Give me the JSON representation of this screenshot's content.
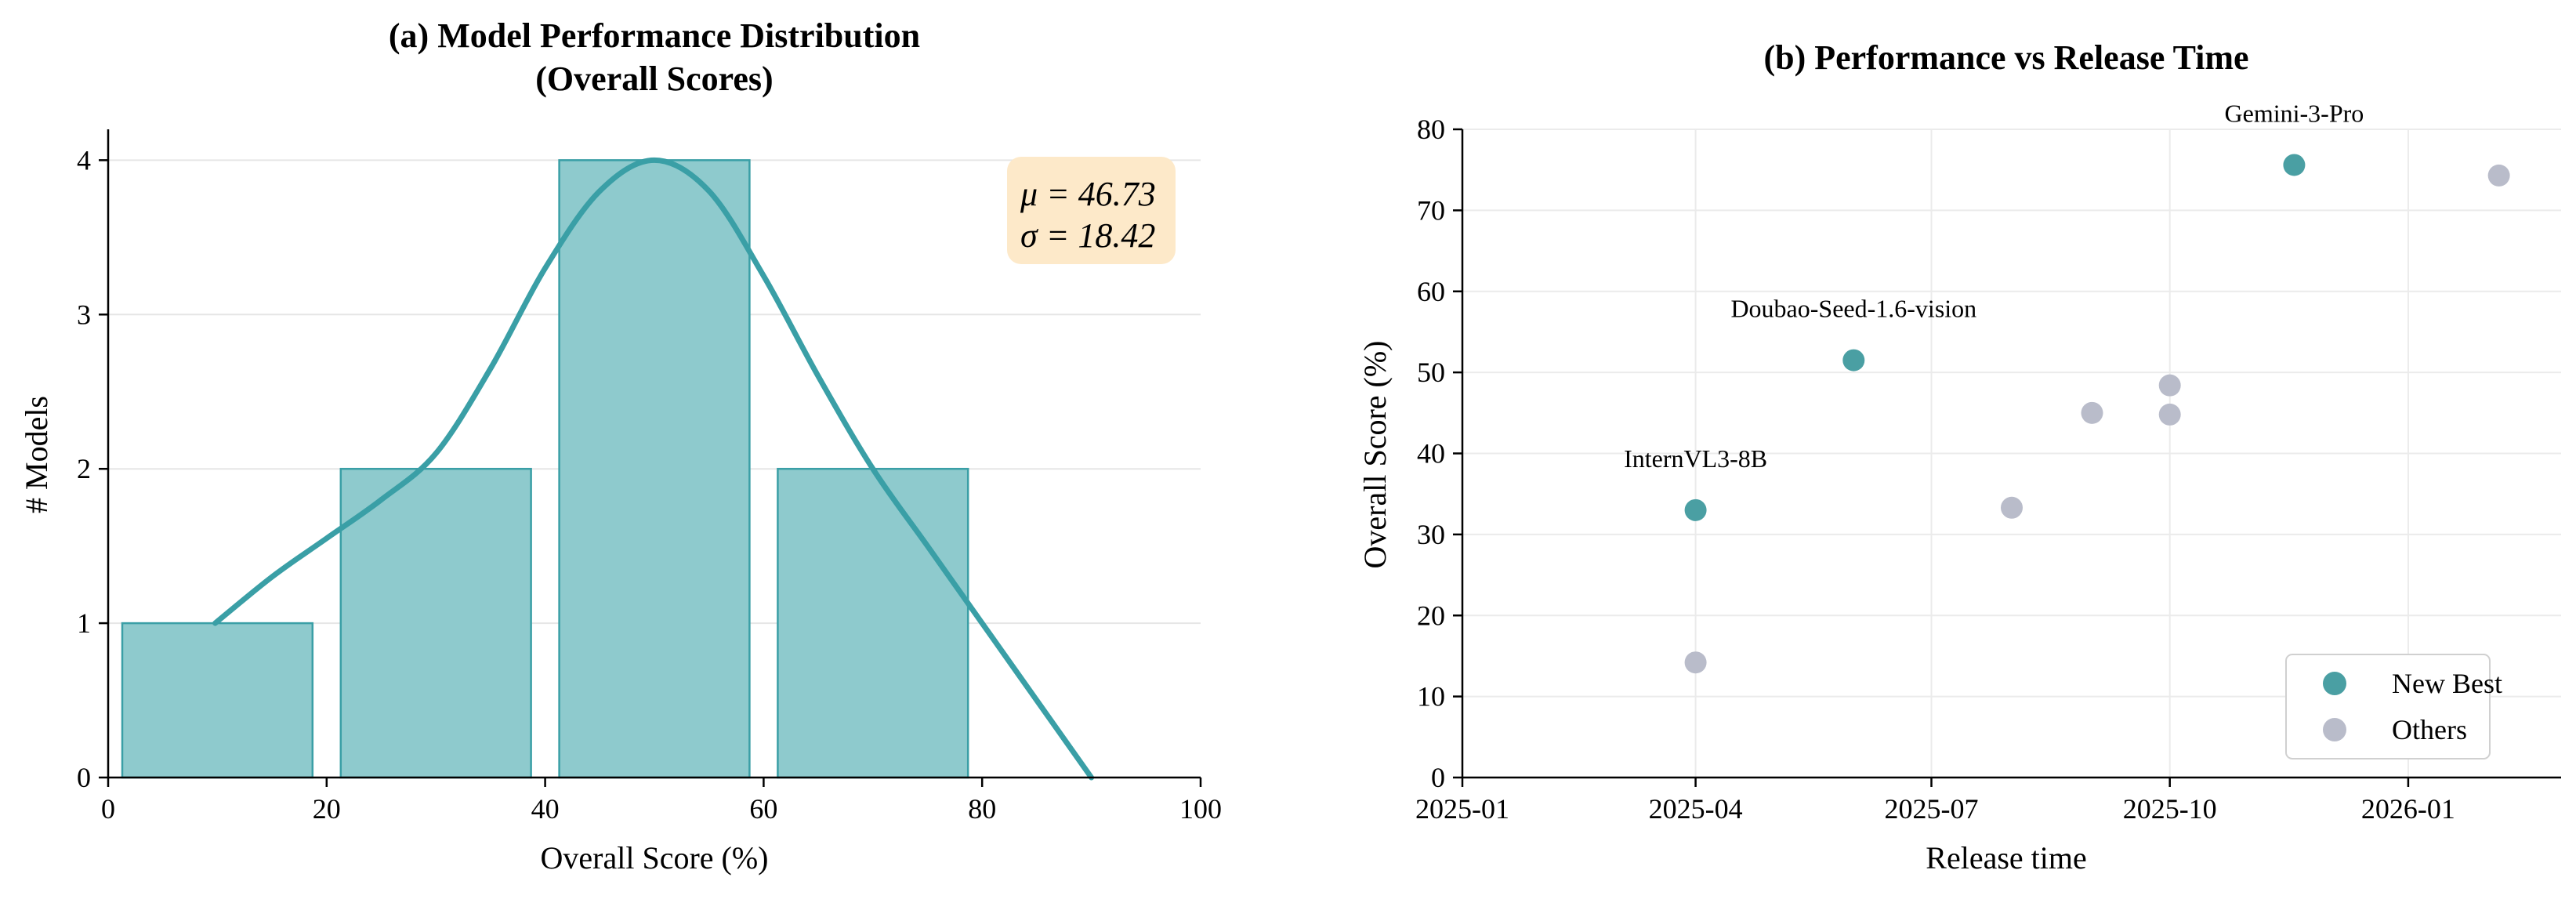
{
  "chart_data": [
    {
      "type": "bar",
      "title_lines": [
        "(a) Model Performance Distribution",
        "(Overall Scores)"
      ],
      "xlabel": "Overall Score (%)",
      "ylabel": "# Models",
      "xlim": [
        0,
        100
      ],
      "ylim": [
        0,
        4.2
      ],
      "xticks": [
        0,
        20,
        40,
        60,
        80,
        100
      ],
      "yticks": [
        0,
        1,
        2,
        3,
        4
      ],
      "grid": "horizontal",
      "bins": [
        {
          "start": 0,
          "end": 20,
          "count": 1
        },
        {
          "start": 20,
          "end": 40,
          "count": 2
        },
        {
          "start": 40,
          "end": 60,
          "count": 4
        },
        {
          "start": 60,
          "end": 80,
          "count": 2
        }
      ],
      "density_curve": [
        [
          9.8,
          1.0
        ],
        [
          15,
          1.3
        ],
        [
          20,
          1.55
        ],
        [
          25,
          1.8
        ],
        [
          30,
          2.1
        ],
        [
          35,
          2.65
        ],
        [
          40,
          3.3
        ],
        [
          45,
          3.8
        ],
        [
          50,
          4.0
        ],
        [
          55,
          3.8
        ],
        [
          60,
          3.25
        ],
        [
          65,
          2.6
        ],
        [
          70,
          2.0
        ],
        [
          75,
          1.5
        ],
        [
          80,
          1.0
        ],
        [
          85,
          0.5
        ],
        [
          90,
          0.0
        ]
      ],
      "stats_box": {
        "mu_text": "μ = 46.73",
        "sigma_text": "σ = 18.42",
        "placement": "top-right"
      },
      "colors": {
        "bar_fill": "#8ecacd",
        "bar_edge": "#3a9fa6",
        "curve": "#3a9fa6",
        "stats_bg": "#fde9c9"
      }
    },
    {
      "type": "scatter",
      "title": "(b) Performance vs Release Time",
      "xlabel": "Release time",
      "ylabel": "Overall Score (%)",
      "xlim": [
        "2025-01-01",
        "2026-03-01"
      ],
      "ylim": [
        0,
        80
      ],
      "xticks": [
        "2025-01",
        "2025-04",
        "2025-07",
        "2025-10",
        "2026-01"
      ],
      "yticks": [
        0,
        10,
        20,
        30,
        40,
        50,
        60,
        70,
        80
      ],
      "grid": true,
      "legend_placement": "bottom-right",
      "series": [
        {
          "name": "New Best",
          "color": "#4a9fa3",
          "points": [
            {
              "date": "2025-04-01",
              "y": 33.0,
              "label": "InternVL3-8B"
            },
            {
              "date": "2025-06-01",
              "y": 51.5,
              "label": "Doubao-Seed-1.6-vision"
            },
            {
              "date": "2025-11-18",
              "y": 75.6,
              "label": "Gemini-3-Pro"
            }
          ]
        },
        {
          "name": "Others",
          "color": "#b9bcca",
          "points": [
            {
              "date": "2025-04-01",
              "y": 14.2
            },
            {
              "date": "2025-08-01",
              "y": 33.3
            },
            {
              "date": "2025-09-01",
              "y": 45.0
            },
            {
              "date": "2025-10-01",
              "y": 48.4
            },
            {
              "date": "2025-10-01",
              "y": 44.8
            },
            {
              "date": "2026-02-05",
              "y": 74.3
            }
          ]
        }
      ]
    }
  ]
}
